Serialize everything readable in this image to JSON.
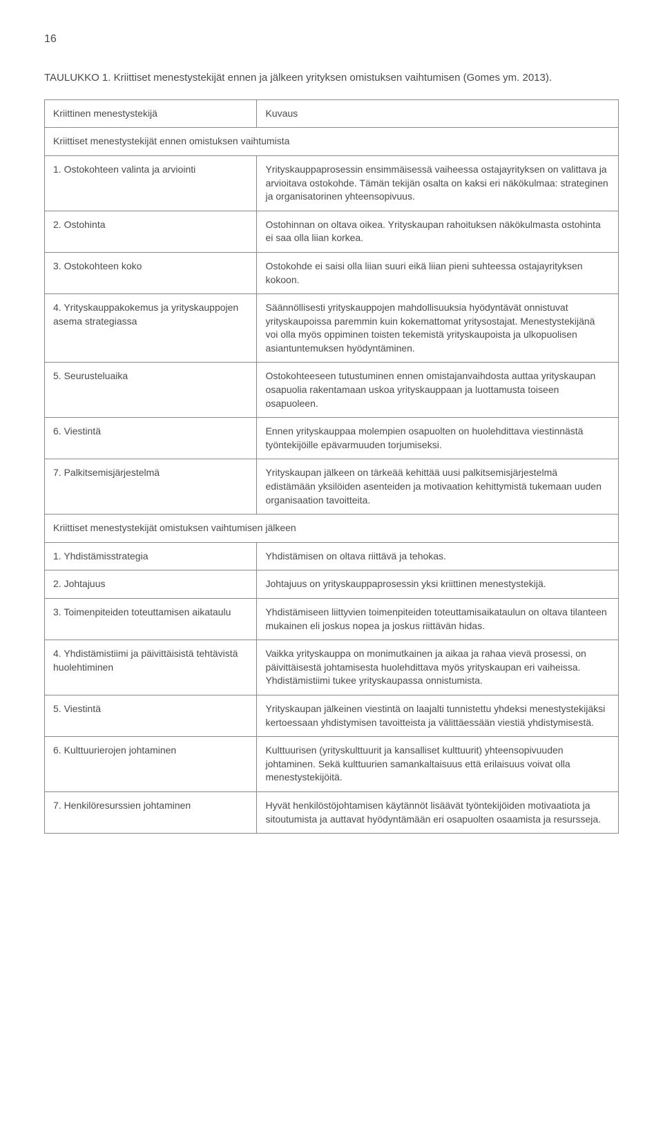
{
  "page_number": "16",
  "table_title": "TAULUKKO 1. Kriittiset menestystekijät ennen ja jälkeen yrityksen omistuksen vaihtumisen (Gomes ym. 2013).",
  "header": {
    "left": "Kriittinen menestystekijä",
    "right": "Kuvaus"
  },
  "section1_title": "Kriittiset menestystekijät ennen omistuksen vaihtumista",
  "section1_rows": [
    {
      "left": "1. Ostokohteen valinta ja arviointi",
      "right": "Yrityskauppaprosessin ensimmäisessä vaiheessa ostajayrityksen on valittava ja arvioitava ostokohde. Tämän tekijän osalta on kaksi eri näkökulmaa: strateginen ja organisatorinen yhteensopivuus."
    },
    {
      "left": "2. Ostohinta",
      "right": "Ostohinnan on oltava oikea. Yrityskaupan rahoituksen näkökulmasta ostohinta ei saa olla liian korkea."
    },
    {
      "left": "3. Ostokohteen koko",
      "right": "Ostokohde ei saisi olla liian suuri eikä liian pieni suhteessa ostajayrityksen kokoon."
    },
    {
      "left": "4. Yrityskauppakokemus ja yrityskauppojen asema strategiassa",
      "right": "Säännöllisesti yrityskauppojen mahdollisuuksia hyödyntävät onnistuvat yrityskaupoissa paremmin kuin kokemattomat yritysostajat. Menestystekijänä voi olla myös oppiminen toisten tekemistä yrityskaupoista ja ulkopuolisen asiantuntemuksen hyödyntäminen."
    },
    {
      "left": "5. Seurusteluaika",
      "right": "Ostokohteeseen tutustuminen ennen omistajanvaihdosta auttaa yrityskaupan osapuolia rakentamaan uskoa yrityskauppaan ja luottamusta toiseen osapuoleen."
    },
    {
      "left": "6. Viestintä",
      "right": "Ennen yrityskauppaa molempien osapuolten on huolehdittava viestinnästä työntekijöille epävarmuuden torjumiseksi."
    },
    {
      "left": "7. Palkitsemisjärjestelmä",
      "right": "Yrityskaupan jälkeen on tärkeää kehittää uusi palkitsemisjärjestelmä edistämään yksilöiden asenteiden ja motivaation kehittymistä tukemaan uuden organisaation tavoitteita."
    }
  ],
  "section2_title": "Kriittiset menestystekijät omistuksen vaihtumisen jälkeen",
  "section2_rows": [
    {
      "left": "1. Yhdistämisstrategia",
      "right": "Yhdistämisen on oltava riittävä ja tehokas."
    },
    {
      "left": "2. Johtajuus",
      "right": "Johtajuus on yrityskauppaprosessin yksi kriittinen menestystekijä."
    },
    {
      "left": "3. Toimenpiteiden toteuttamisen aikataulu",
      "right": "Yhdistämiseen liittyvien toimenpiteiden toteuttamisaikataulun on oltava tilanteen mukainen eli joskus nopea ja joskus riittävän hidas."
    },
    {
      "left": "4. Yhdistämistiimi ja päivittäisistä tehtävistä huolehtiminen",
      "right": "Vaikka yrityskauppa on monimutkainen ja aikaa ja rahaa vievä prosessi, on päivittäisestä johtamisesta huolehdittava myös yrityskaupan eri vaiheissa. Yhdistämistiimi tukee yrityskaupassa onnistumista."
    },
    {
      "left": "5. Viestintä",
      "right": "Yrityskaupan jälkeinen viestintä on laajalti tunnistettu yhdeksi menestystekijäksi kertoessaan yhdistymisen tavoitteista ja välittäessään viestiä yhdistymisestä."
    },
    {
      "left": "6. Kulttuurierojen johtaminen",
      "right": "Kulttuurisen (yrityskulttuurit ja kansalliset kulttuurit) yhteensopivuuden johtaminen. Sekä kulttuurien samankaltaisuus että erilaisuus voivat olla menestystekijöitä."
    },
    {
      "left": "7. Henkilöresurssien johtaminen",
      "right": "Hyvät henkilöstöjohtamisen käytännöt lisäävät työntekijöiden motivaatiota ja sitoutumista ja auttavat hyödyntämään eri osapuolten osaamista ja resursseja."
    }
  ]
}
